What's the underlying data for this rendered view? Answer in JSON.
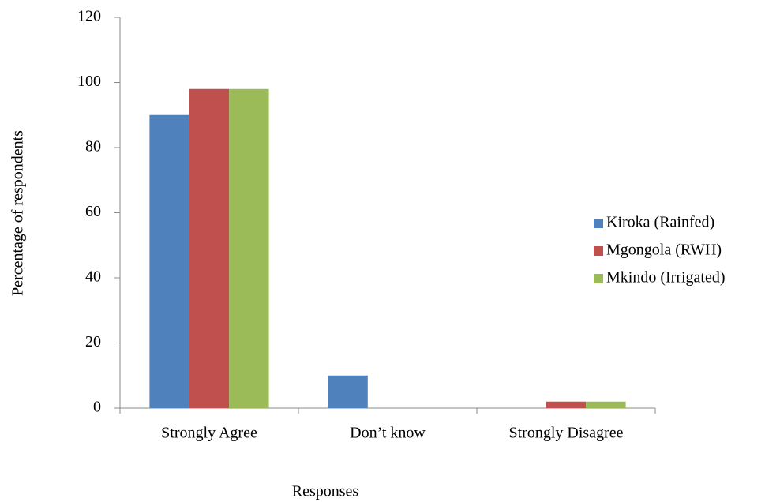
{
  "chart_data": {
    "type": "bar",
    "x_label": "Responses",
    "y_label": "Percentage of respondents",
    "categories": [
      "Strongly Agree",
      "Don’t know",
      "Strongly Disagree"
    ],
    "series": [
      {
        "name": "Kiroka (Rainfed)",
        "color": "#4f81bd",
        "values": [
          90,
          10,
          0
        ]
      },
      {
        "name": "Mgongola (RWH)",
        "color": "#c0504d",
        "values": [
          98,
          0,
          2
        ]
      },
      {
        "name": "Mkindo (Irrigated)",
        "color": "#9bbb59",
        "values": [
          98,
          0,
          2
        ]
      }
    ],
    "ylim": [
      0,
      120
    ],
    "yticks": [
      0,
      20,
      40,
      60,
      80,
      100,
      120
    ],
    "grid": false,
    "legend": "right"
  }
}
